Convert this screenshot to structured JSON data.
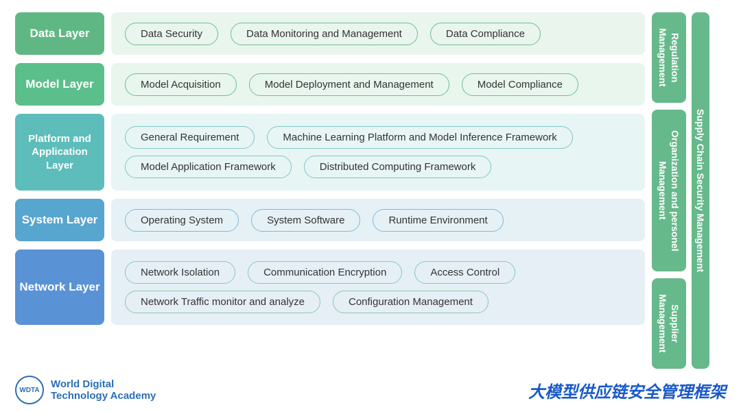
{
  "colors": {
    "layer1_label_bg": "#5fb883",
    "layer1_body_bg": "#e9f5ed",
    "layer1_pill_border": "#6cc08f",
    "layer2_label_bg": "#5bbf8b",
    "layer2_body_bg": "#e8f6ee",
    "layer2_pill_border": "#6cc08f",
    "layer3_label_bg": "#5cbdba",
    "layer3_body_bg": "#e8f5f5",
    "layer3_pill_border": "#7dc6c4",
    "layer4_label_bg": "#57a6cf",
    "layer4_body_bg": "#e6f1f6",
    "layer4_pill_border": "#7cbad7",
    "layer5_label_bg": "#5a92d6",
    "layer5_body_bg": "#e6eff6",
    "layer5_pill_border": "#88c9a8",
    "side_bg": "#66b98b",
    "footer_brand": "#2a6fb5",
    "footer_title": "#1959c9"
  },
  "layers": [
    {
      "label": "Data Layer",
      "label_fontsize": 17,
      "height": 62,
      "items": [
        "Data Security",
        "Data Monitoring and Management",
        "Data Compliance"
      ]
    },
    {
      "label": "Model Layer",
      "label_fontsize": 17,
      "height": 62,
      "items": [
        "Model Acquisition",
        "Model Deployment  and Management",
        "Model Compliance"
      ]
    },
    {
      "label": "Platform and Application Layer",
      "label_fontsize": 15,
      "height": 112,
      "items": [
        "General Requirement",
        "Machine Learning Platform and Model Inference Framework",
        "Model Application Framework",
        "Distributed Computing Framework"
      ]
    },
    {
      "label": "System Layer",
      "label_fontsize": 17,
      "height": 62,
      "items": [
        "Operating System",
        "System Software",
        "Runtime Environment"
      ]
    },
    {
      "label": "Network Layer",
      "label_fontsize": 17,
      "height": 110,
      "items": [
        "Network Isolation",
        "Communication Encryption",
        "Access Control",
        "Network Traffic monitor and analyze",
        "Configuration Management"
      ]
    }
  ],
  "side": {
    "stack": [
      {
        "label": "Regulation Management",
        "flex": 1
      },
      {
        "label": "Organization and personel Management",
        "flex": 2
      },
      {
        "label": "Supplier Management",
        "flex": 1
      }
    ],
    "single": "Supply Chain Security Management"
  },
  "footer": {
    "brand_line1": "World Digital",
    "brand_line2": "Technology Academy",
    "badge_text": "WDTA",
    "title": "大模型供应链安全管理框架"
  }
}
